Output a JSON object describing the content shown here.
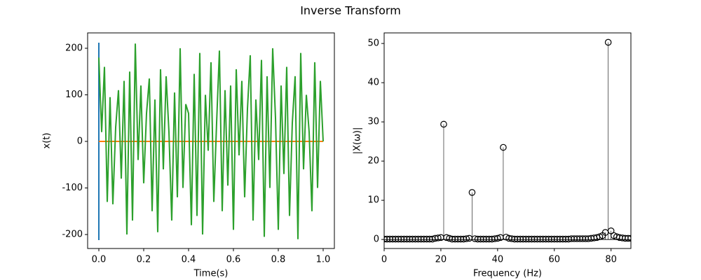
{
  "title": "Inverse Transform",
  "chart_data": [
    {
      "type": "line",
      "xlabel": "Time(s)",
      "ylabel": "x(t)",
      "xlim": [
        -0.05,
        1.05
      ],
      "ylim": [
        -230,
        233
      ],
      "xticks": [
        {
          "value": 0,
          "label": "0.0"
        },
        0.2,
        0.4,
        0.6,
        0.8,
        {
          "value": 1,
          "label": "1.0"
        }
      ],
      "yticks": [
        -200,
        -100,
        0,
        100,
        200
      ],
      "series": [
        {
          "color": "#1f77b4",
          "x": [
            0,
            0
          ],
          "values": [
            -212,
            212
          ]
        },
        {
          "color": "#ff7f0e",
          "x": [
            0,
            1
          ],
          "values": [
            0,
            0
          ]
        },
        {
          "color": "#2ca02c",
          "x": [
            0,
            0.0125,
            0.025,
            0.0375,
            0.05,
            0.0625,
            0.075,
            0.0875,
            0.1,
            0.1125,
            0.125,
            0.1375,
            0.15,
            0.1625,
            0.175,
            0.1875,
            0.2,
            0.2125,
            0.225,
            0.2375,
            0.25,
            0.2625,
            0.275,
            0.2875,
            0.3,
            0.3125,
            0.325,
            0.3375,
            0.35,
            0.3625,
            0.375,
            0.3875,
            0.4,
            0.4125,
            0.425,
            0.4375,
            0.45,
            0.4625,
            0.475,
            0.4875,
            0.5,
            0.5125,
            0.525,
            0.5375,
            0.55,
            0.5625,
            0.575,
            0.5875,
            0.6,
            0.6125,
            0.625,
            0.6375,
            0.65,
            0.6625,
            0.675,
            0.6875,
            0.7,
            0.7125,
            0.725,
            0.7375,
            0.75,
            0.7625,
            0.775,
            0.7875,
            0.8,
            0.8125,
            0.825,
            0.8375,
            0.85,
            0.8625,
            0.875,
            0.8875,
            0.9,
            0.9125,
            0.925,
            0.9375,
            0.95,
            0.9625,
            0.975,
            0.9875,
            1
          ],
          "values": [
            180,
            20,
            160,
            -130,
            95,
            -135,
            30,
            110,
            -80,
            130,
            -200,
            150,
            -170,
            210,
            -40,
            120,
            -90,
            60,
            135,
            -150,
            90,
            -195,
            155,
            -60,
            140,
            20,
            -170,
            105,
            -120,
            200,
            -100,
            80,
            60,
            -180,
            145,
            -160,
            190,
            -200,
            100,
            -20,
            170,
            -130,
            40,
            195,
            -150,
            110,
            -95,
            120,
            -190,
            155,
            -30,
            130,
            -120,
            70,
            185,
            -170,
            90,
            -40,
            175,
            -205,
            140,
            -100,
            200,
            50,
            -190,
            120,
            -70,
            160,
            -160,
            40,
            140,
            -210,
            190,
            -60,
            100,
            20,
            -150,
            170,
            -100,
            130,
            0
          ]
        }
      ]
    },
    {
      "type": "stem",
      "xlabel": "Frequency (Hz)",
      "ylabel": "|X(ω)|",
      "color": "#000000",
      "xlim": [
        0,
        87
      ],
      "ylim": [
        -2.3,
        52.7
      ],
      "xticks": [
        0,
        20,
        40,
        60,
        80
      ],
      "yticks": [
        0,
        10,
        20,
        30,
        40,
        50
      ],
      "x": [
        0,
        1,
        2,
        3,
        4,
        5,
        6,
        7,
        8,
        9,
        10,
        11,
        12,
        13,
        14,
        15,
        16,
        17,
        18,
        19,
        20,
        21,
        22,
        23,
        24,
        25,
        26,
        27,
        28,
        29,
        30,
        31,
        32,
        33,
        34,
        35,
        36,
        37,
        38,
        39,
        40,
        41,
        42,
        43,
        44,
        45,
        46,
        47,
        48,
        49,
        50,
        51,
        52,
        53,
        54,
        55,
        56,
        57,
        58,
        59,
        60,
        61,
        62,
        63,
        64,
        65,
        66,
        67,
        68,
        69,
        70,
        71,
        72,
        73,
        74,
        75,
        76,
        77,
        78,
        79,
        80,
        81,
        82,
        83,
        84,
        85,
        86,
        87
      ],
      "values": [
        0.1,
        0.1,
        0.1,
        0.1,
        0.1,
        0.1,
        0.1,
        0.1,
        0.1,
        0.1,
        0.1,
        0.1,
        0.1,
        0.1,
        0.1,
        0.1,
        0.1,
        0.1,
        0.3,
        0.4,
        0.5,
        29.4,
        0.5,
        0.3,
        0.1,
        0.1,
        0.1,
        0.1,
        0.1,
        0.2,
        0.3,
        12,
        0.2,
        0.1,
        0.1,
        0.1,
        0.1,
        0.1,
        0.1,
        0.2,
        0.3,
        0.5,
        23.5,
        0.6,
        0.3,
        0.2,
        0.1,
        0.1,
        0.1,
        0.1,
        0.1,
        0.1,
        0.1,
        0.1,
        0.1,
        0.1,
        0.1,
        0.1,
        0.1,
        0.1,
        0.1,
        0.1,
        0.1,
        0.1,
        0.1,
        0.1,
        0.2,
        0.2,
        0.2,
        0.2,
        0.2,
        0.2,
        0.2,
        0.3,
        0.4,
        0.5,
        0.7,
        1,
        1.8,
        50.3,
        2.2,
        1,
        0.7,
        0.5,
        0.4,
        0.3,
        0.3,
        0.3
      ]
    }
  ]
}
